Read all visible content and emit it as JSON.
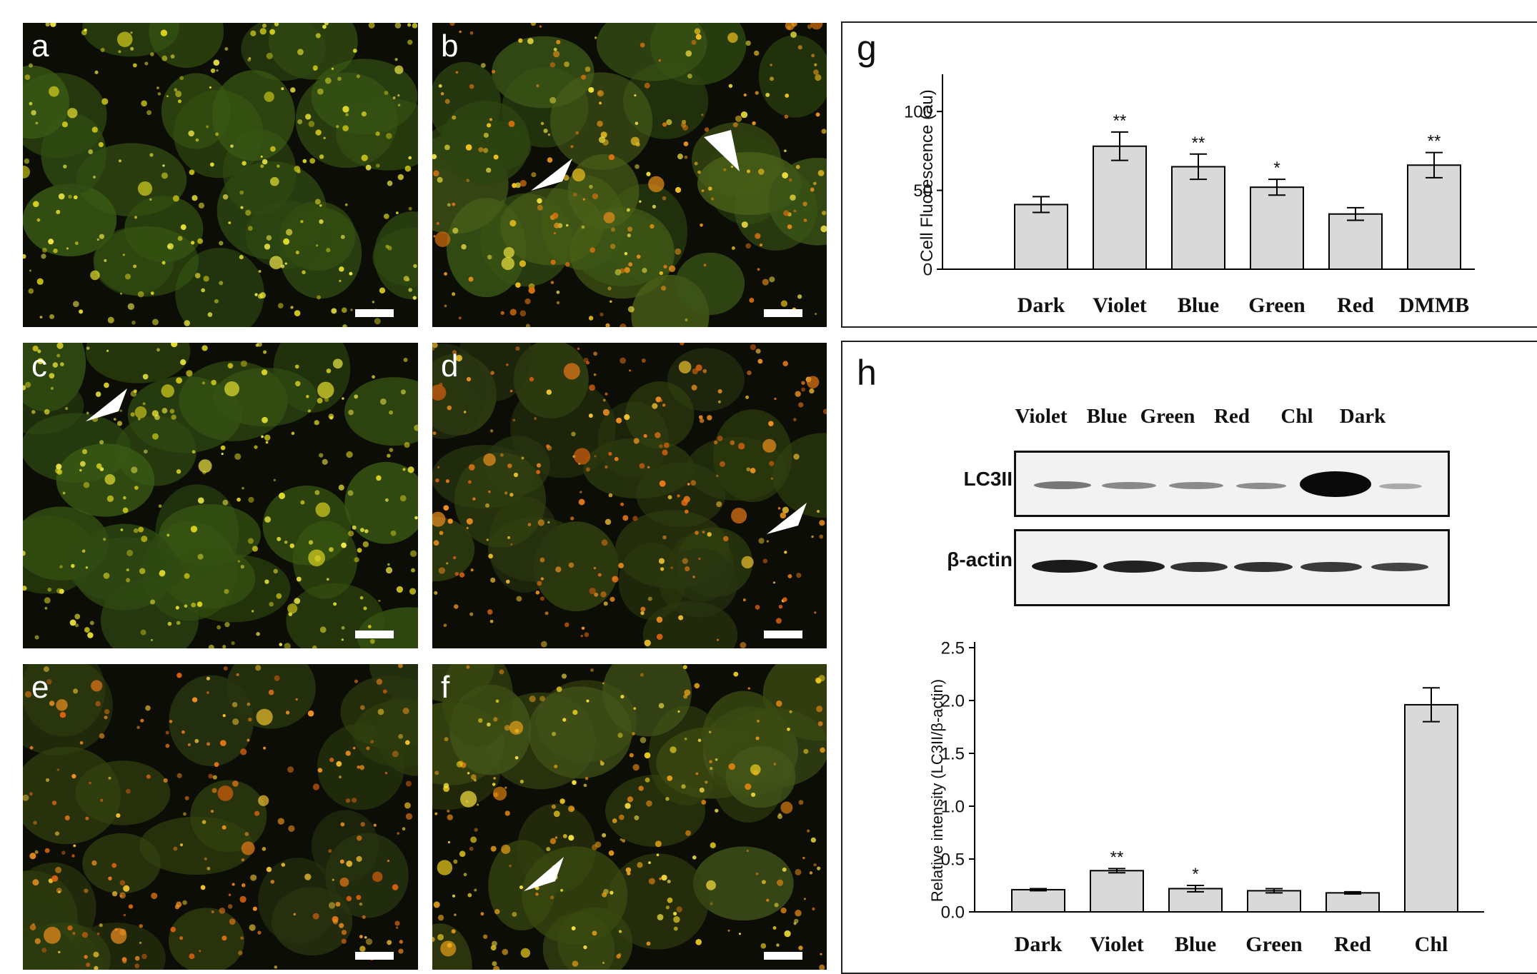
{
  "panels": [
    {
      "label": "a",
      "theme": "green"
    },
    {
      "label": "b",
      "theme": "mixed"
    },
    {
      "label": "c",
      "theme": "green"
    },
    {
      "label": "d",
      "theme": "orange"
    },
    {
      "label": "e",
      "theme": "orange"
    },
    {
      "label": "f",
      "theme": "yellow"
    }
  ],
  "panel_g": {
    "label": "g",
    "chart_data": {
      "type": "bar",
      "categories": [
        "Dark",
        "Violet",
        "Blue",
        "Green",
        "Red",
        "DMMB"
      ],
      "values": [
        41,
        78,
        65,
        52,
        35,
        66
      ],
      "errors": [
        5,
        9,
        8,
        5,
        4,
        8
      ],
      "significance": [
        "",
        "**",
        "**",
        "*",
        "",
        "**"
      ],
      "ylabel": "Cell Fluorescence (au)",
      "yticks": [
        "0",
        "50",
        "100"
      ],
      "ylim": [
        0,
        120
      ],
      "bar_color": "#d9d9d9"
    }
  },
  "panel_h": {
    "label": "h",
    "blot": {
      "lanes": [
        "Violet",
        "Blue",
        "Green",
        "Red",
        "Chl",
        "Dark"
      ],
      "rows": [
        "LC3II",
        "β-actin"
      ]
    },
    "chart_data": {
      "type": "bar",
      "categories": [
        "Dark",
        "Violet",
        "Blue",
        "Green",
        "Red",
        "Chl"
      ],
      "values": [
        0.21,
        0.39,
        0.22,
        0.2,
        0.18,
        1.96
      ],
      "errors": [
        0.01,
        0.02,
        0.03,
        0.02,
        0.01,
        0.16
      ],
      "significance": [
        "",
        "**",
        "*",
        "",
        "",
        ""
      ],
      "ylabel": "Relative intensity (LC3II/β-actin)",
      "yticks": [
        "0.0",
        "0.5",
        "1.0",
        "1.5",
        "2.0",
        "2.5"
      ],
      "ylim": [
        0,
        2.5
      ],
      "bar_color": "#d9d9d9"
    }
  }
}
